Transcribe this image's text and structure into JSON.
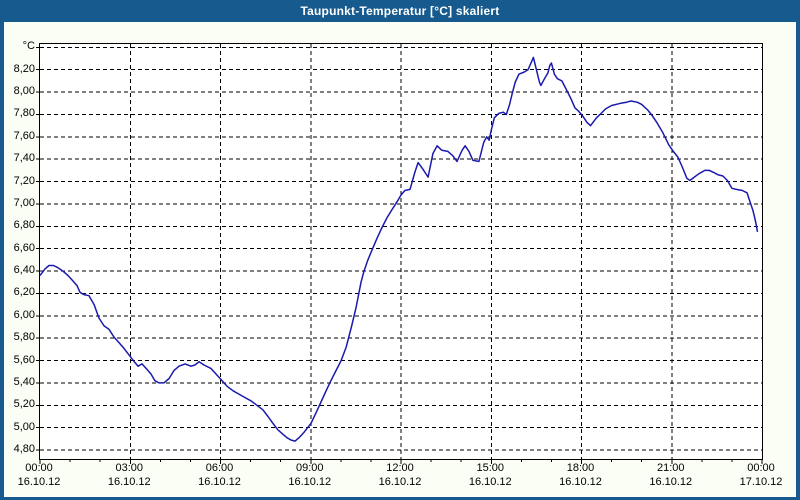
{
  "window": {
    "title": "Taupunkt-Temperatur [°C] skaliert",
    "frame_color": "#175A8E",
    "background_color": "#FBFEF4"
  },
  "chart_data": {
    "type": "line",
    "title": "Taupunkt-Temperatur [°C] skaliert",
    "unit": "°C",
    "line_color": "#1A1AAE",
    "plot_background": "#FFFFFF",
    "grid": "dashed",
    "legend": "none",
    "x_axis": {
      "min_hour": 0,
      "max_hour": 24,
      "grid_hours": [
        3,
        6,
        9,
        12,
        15,
        18,
        21
      ],
      "minor_tick_every_hours": 1,
      "ticks": [
        {
          "t": 0,
          "time": "00:00",
          "date": "16.10.12"
        },
        {
          "t": 3,
          "time": "03:00",
          "date": "16.10.12"
        },
        {
          "t": 6,
          "time": "06:00",
          "date": "16.10.12"
        },
        {
          "t": 9,
          "time": "09:00",
          "date": "16.10.12"
        },
        {
          "t": 12,
          "time": "12:00",
          "date": "16.10.12"
        },
        {
          "t": 15,
          "time": "15:00",
          "date": "16.10.12"
        },
        {
          "t": 18,
          "time": "18:00",
          "date": "16.10.12"
        },
        {
          "t": 21,
          "time": "21:00",
          "date": "16.10.12"
        },
        {
          "t": 24,
          "time": "00:00",
          "date": "17.10.12"
        }
      ]
    },
    "y_axis": {
      "min": 4.72,
      "max": 8.43,
      "ticks": [
        {
          "value": 8.4,
          "label": "°C"
        },
        {
          "value": 8.2,
          "label": "8,20"
        },
        {
          "value": 8.0,
          "label": "8,00"
        },
        {
          "value": 7.8,
          "label": "7,80"
        },
        {
          "value": 7.6,
          "label": "7,60"
        },
        {
          "value": 7.4,
          "label": "7,40"
        },
        {
          "value": 7.2,
          "label": "7,20"
        },
        {
          "value": 7.0,
          "label": "7,00"
        },
        {
          "value": 6.8,
          "label": "6,80"
        },
        {
          "value": 6.6,
          "label": "6,60"
        },
        {
          "value": 6.4,
          "label": "6,40"
        },
        {
          "value": 6.2,
          "label": "6,20"
        },
        {
          "value": 6.0,
          "label": "6,00"
        },
        {
          "value": 5.8,
          "label": "5,80"
        },
        {
          "value": 5.6,
          "label": "5,60"
        },
        {
          "value": 5.4,
          "label": "5,40"
        },
        {
          "value": 5.2,
          "label": "5,20"
        },
        {
          "value": 5.0,
          "label": "5,00"
        },
        {
          "value": 4.8,
          "label": "4,80"
        }
      ]
    },
    "series": [
      {
        "name": "Taupunkt-Temperatur skaliert",
        "points": [
          [
            0.0,
            6.36
          ],
          [
            0.17,
            6.42
          ],
          [
            0.3,
            6.45
          ],
          [
            0.45,
            6.45
          ],
          [
            0.6,
            6.43
          ],
          [
            0.76,
            6.4
          ],
          [
            0.93,
            6.36
          ],
          [
            1.1,
            6.31
          ],
          [
            1.23,
            6.27
          ],
          [
            1.33,
            6.21
          ],
          [
            1.46,
            6.19
          ],
          [
            1.63,
            6.18
          ],
          [
            1.8,
            6.1
          ],
          [
            1.96,
            5.98
          ],
          [
            2.13,
            5.91
          ],
          [
            2.29,
            5.88
          ],
          [
            2.46,
            5.81
          ],
          [
            2.63,
            5.76
          ],
          [
            2.79,
            5.71
          ],
          [
            2.99,
            5.64
          ],
          [
            3.16,
            5.58
          ],
          [
            3.26,
            5.55
          ],
          [
            3.39,
            5.57
          ],
          [
            3.56,
            5.52
          ],
          [
            3.69,
            5.48
          ],
          [
            3.82,
            5.42
          ],
          [
            3.96,
            5.4
          ],
          [
            4.12,
            5.4
          ],
          [
            4.29,
            5.44
          ],
          [
            4.45,
            5.51
          ],
          [
            4.62,
            5.55
          ],
          [
            4.82,
            5.57
          ],
          [
            5.02,
            5.55
          ],
          [
            5.15,
            5.56
          ],
          [
            5.29,
            5.59
          ],
          [
            5.45,
            5.56
          ],
          [
            5.68,
            5.53
          ],
          [
            5.85,
            5.48
          ],
          [
            6.02,
            5.43
          ],
          [
            6.22,
            5.37
          ],
          [
            6.42,
            5.33
          ],
          [
            6.61,
            5.3
          ],
          [
            6.81,
            5.27
          ],
          [
            7.01,
            5.24
          ],
          [
            7.21,
            5.2
          ],
          [
            7.41,
            5.16
          ],
          [
            7.58,
            5.1
          ],
          [
            7.74,
            5.04
          ],
          [
            7.91,
            4.98
          ],
          [
            8.08,
            4.94
          ],
          [
            8.21,
            4.91
          ],
          [
            8.34,
            4.89
          ],
          [
            8.48,
            4.88
          ],
          [
            8.61,
            4.91
          ],
          [
            8.78,
            4.96
          ],
          [
            9.01,
            5.04
          ],
          [
            9.17,
            5.13
          ],
          [
            9.34,
            5.23
          ],
          [
            9.51,
            5.33
          ],
          [
            9.67,
            5.42
          ],
          [
            9.84,
            5.51
          ],
          [
            10.01,
            5.6
          ],
          [
            10.18,
            5.72
          ],
          [
            10.35,
            5.9
          ],
          [
            10.51,
            6.08
          ],
          [
            10.67,
            6.3
          ],
          [
            10.77,
            6.4
          ],
          [
            10.9,
            6.5
          ],
          [
            11.04,
            6.59
          ],
          [
            11.2,
            6.69
          ],
          [
            11.37,
            6.79
          ],
          [
            11.54,
            6.88
          ],
          [
            11.7,
            6.95
          ],
          [
            11.87,
            7.02
          ],
          [
            12.0,
            7.08
          ],
          [
            12.13,
            7.12
          ],
          [
            12.3,
            7.13
          ],
          [
            12.47,
            7.29
          ],
          [
            12.57,
            7.37
          ],
          [
            12.73,
            7.31
          ],
          [
            12.9,
            7.24
          ],
          [
            13.06,
            7.45
          ],
          [
            13.2,
            7.52
          ],
          [
            13.36,
            7.48
          ],
          [
            13.56,
            7.47
          ],
          [
            13.73,
            7.43
          ],
          [
            13.86,
            7.38
          ],
          [
            14.03,
            7.48
          ],
          [
            14.13,
            7.52
          ],
          [
            14.26,
            7.47
          ],
          [
            14.39,
            7.39
          ],
          [
            14.59,
            7.38
          ],
          [
            14.75,
            7.55
          ],
          [
            14.85,
            7.6
          ],
          [
            14.93,
            7.57
          ],
          [
            15.0,
            7.66
          ],
          [
            15.1,
            7.77
          ],
          [
            15.25,
            7.81
          ],
          [
            15.4,
            7.82
          ],
          [
            15.5,
            7.8
          ],
          [
            15.6,
            7.88
          ],
          [
            15.7,
            7.99
          ],
          [
            15.8,
            8.09
          ],
          [
            15.92,
            8.16
          ],
          [
            16.1,
            8.18
          ],
          [
            16.22,
            8.2
          ],
          [
            16.32,
            8.26
          ],
          [
            16.4,
            8.31
          ],
          [
            16.5,
            8.2
          ],
          [
            16.6,
            8.09
          ],
          [
            16.65,
            8.06
          ],
          [
            16.75,
            8.11
          ],
          [
            16.88,
            8.17
          ],
          [
            16.95,
            8.24
          ],
          [
            17.0,
            8.26
          ],
          [
            17.1,
            8.16
          ],
          [
            17.2,
            8.12
          ],
          [
            17.35,
            8.1
          ],
          [
            17.5,
            8.02
          ],
          [
            17.65,
            7.94
          ],
          [
            17.78,
            7.86
          ],
          [
            17.9,
            7.83
          ],
          [
            18.03,
            7.79
          ],
          [
            18.18,
            7.73
          ],
          [
            18.3,
            7.7
          ],
          [
            18.5,
            7.77
          ],
          [
            18.65,
            7.81
          ],
          [
            18.8,
            7.85
          ],
          [
            19.0,
            7.88
          ],
          [
            19.3,
            7.9
          ],
          [
            19.5,
            7.91
          ],
          [
            19.65,
            7.92
          ],
          [
            19.85,
            7.91
          ],
          [
            20.0,
            7.89
          ],
          [
            20.2,
            7.84
          ],
          [
            20.35,
            7.79
          ],
          [
            20.5,
            7.73
          ],
          [
            20.7,
            7.64
          ],
          [
            20.9,
            7.53
          ],
          [
            21.05,
            7.47
          ],
          [
            21.2,
            7.42
          ],
          [
            21.35,
            7.33
          ],
          [
            21.5,
            7.23
          ],
          [
            21.6,
            7.21
          ],
          [
            21.75,
            7.24
          ],
          [
            21.9,
            7.27
          ],
          [
            22.1,
            7.3
          ],
          [
            22.25,
            7.3
          ],
          [
            22.4,
            7.28
          ],
          [
            22.55,
            7.26
          ],
          [
            22.7,
            7.25
          ],
          [
            22.85,
            7.21
          ],
          [
            23.0,
            7.14
          ],
          [
            23.15,
            7.13
          ],
          [
            23.35,
            7.12
          ],
          [
            23.5,
            7.1
          ],
          [
            23.6,
            7.02
          ],
          [
            23.7,
            6.94
          ],
          [
            23.78,
            6.85
          ],
          [
            23.85,
            6.75
          ]
        ]
      }
    ]
  }
}
